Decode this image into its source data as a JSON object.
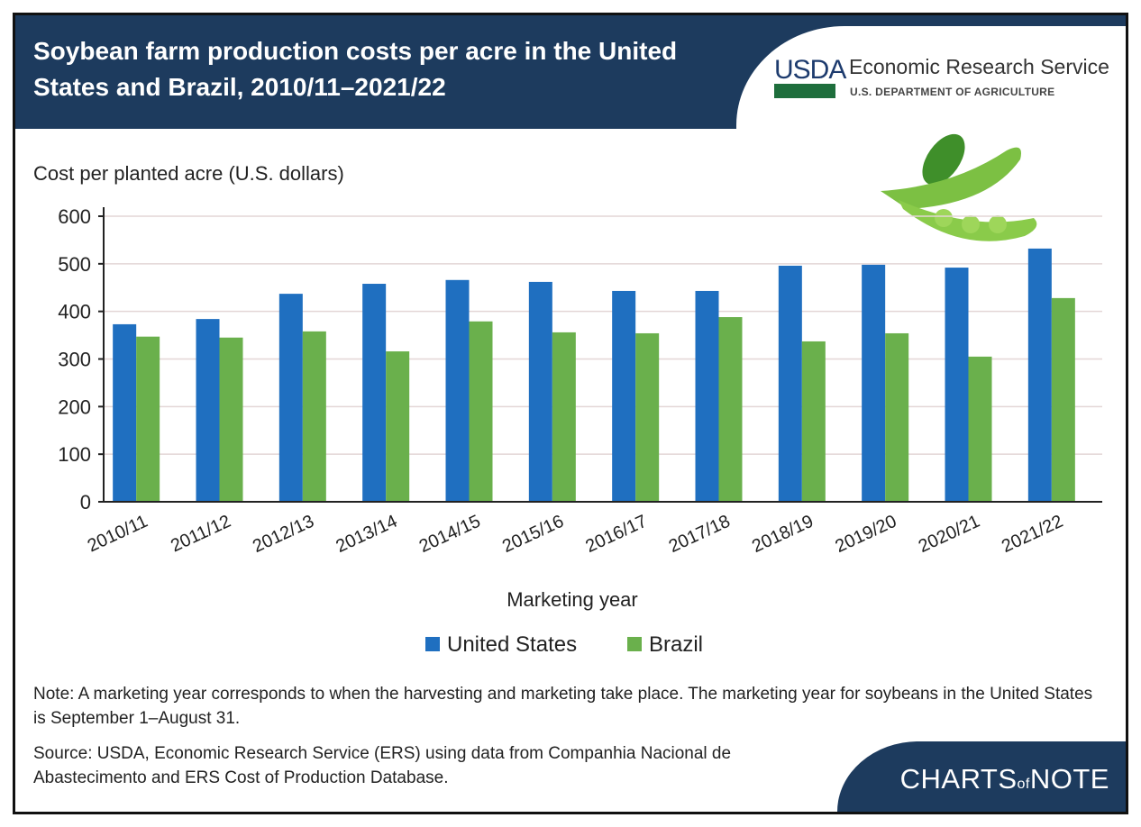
{
  "header": {
    "title": "Soybean farm production costs per acre in the United States and Brazil, 2010/11–2021/22",
    "logo_text": "USDA",
    "agency": "Economic Research Service",
    "department": "U.S. DEPARTMENT OF AGRICULTURE"
  },
  "chart_data": {
    "type": "bar",
    "title": "Soybean farm production costs per acre in the United States and Brazil, 2010/11–2021/22",
    "ylabel": "Cost per planted acre (U.S. dollars)",
    "xlabel": "Marketing year",
    "ylim": [
      0,
      600
    ],
    "yticks": [
      0,
      100,
      200,
      300,
      400,
      500,
      600
    ],
    "grid": true,
    "legend_placement": "bottom",
    "categories": [
      "2010/11",
      "2011/12",
      "2012/13",
      "2013/14",
      "2014/15",
      "2015/16",
      "2016/17",
      "2017/18",
      "2018/19",
      "2019/20",
      "2020/21",
      "2021/22"
    ],
    "series": [
      {
        "name": "United States",
        "color": "#1f6fc0",
        "values": [
          373,
          384,
          437,
          458,
          466,
          462,
          443,
          443,
          496,
          498,
          492,
          532
        ]
      },
      {
        "name": "Brazil",
        "color": "#6ab04c",
        "values": [
          347,
          345,
          358,
          316,
          379,
          356,
          354,
          388,
          337,
          354,
          305,
          428
        ]
      }
    ]
  },
  "notes": {
    "note": "Note: A marketing year corresponds to when the harvesting and marketing take place. The marketing year for soybeans in the United States is September 1–August 31.",
    "source": "Source: USDA, Economic Research Service (ERS) using data from Companhia Nacional de Abastecimento and ERS Cost of Production Database."
  },
  "footer": {
    "brand_a": "CHARTS",
    "brand_of": "of",
    "brand_b": "NOTE"
  }
}
